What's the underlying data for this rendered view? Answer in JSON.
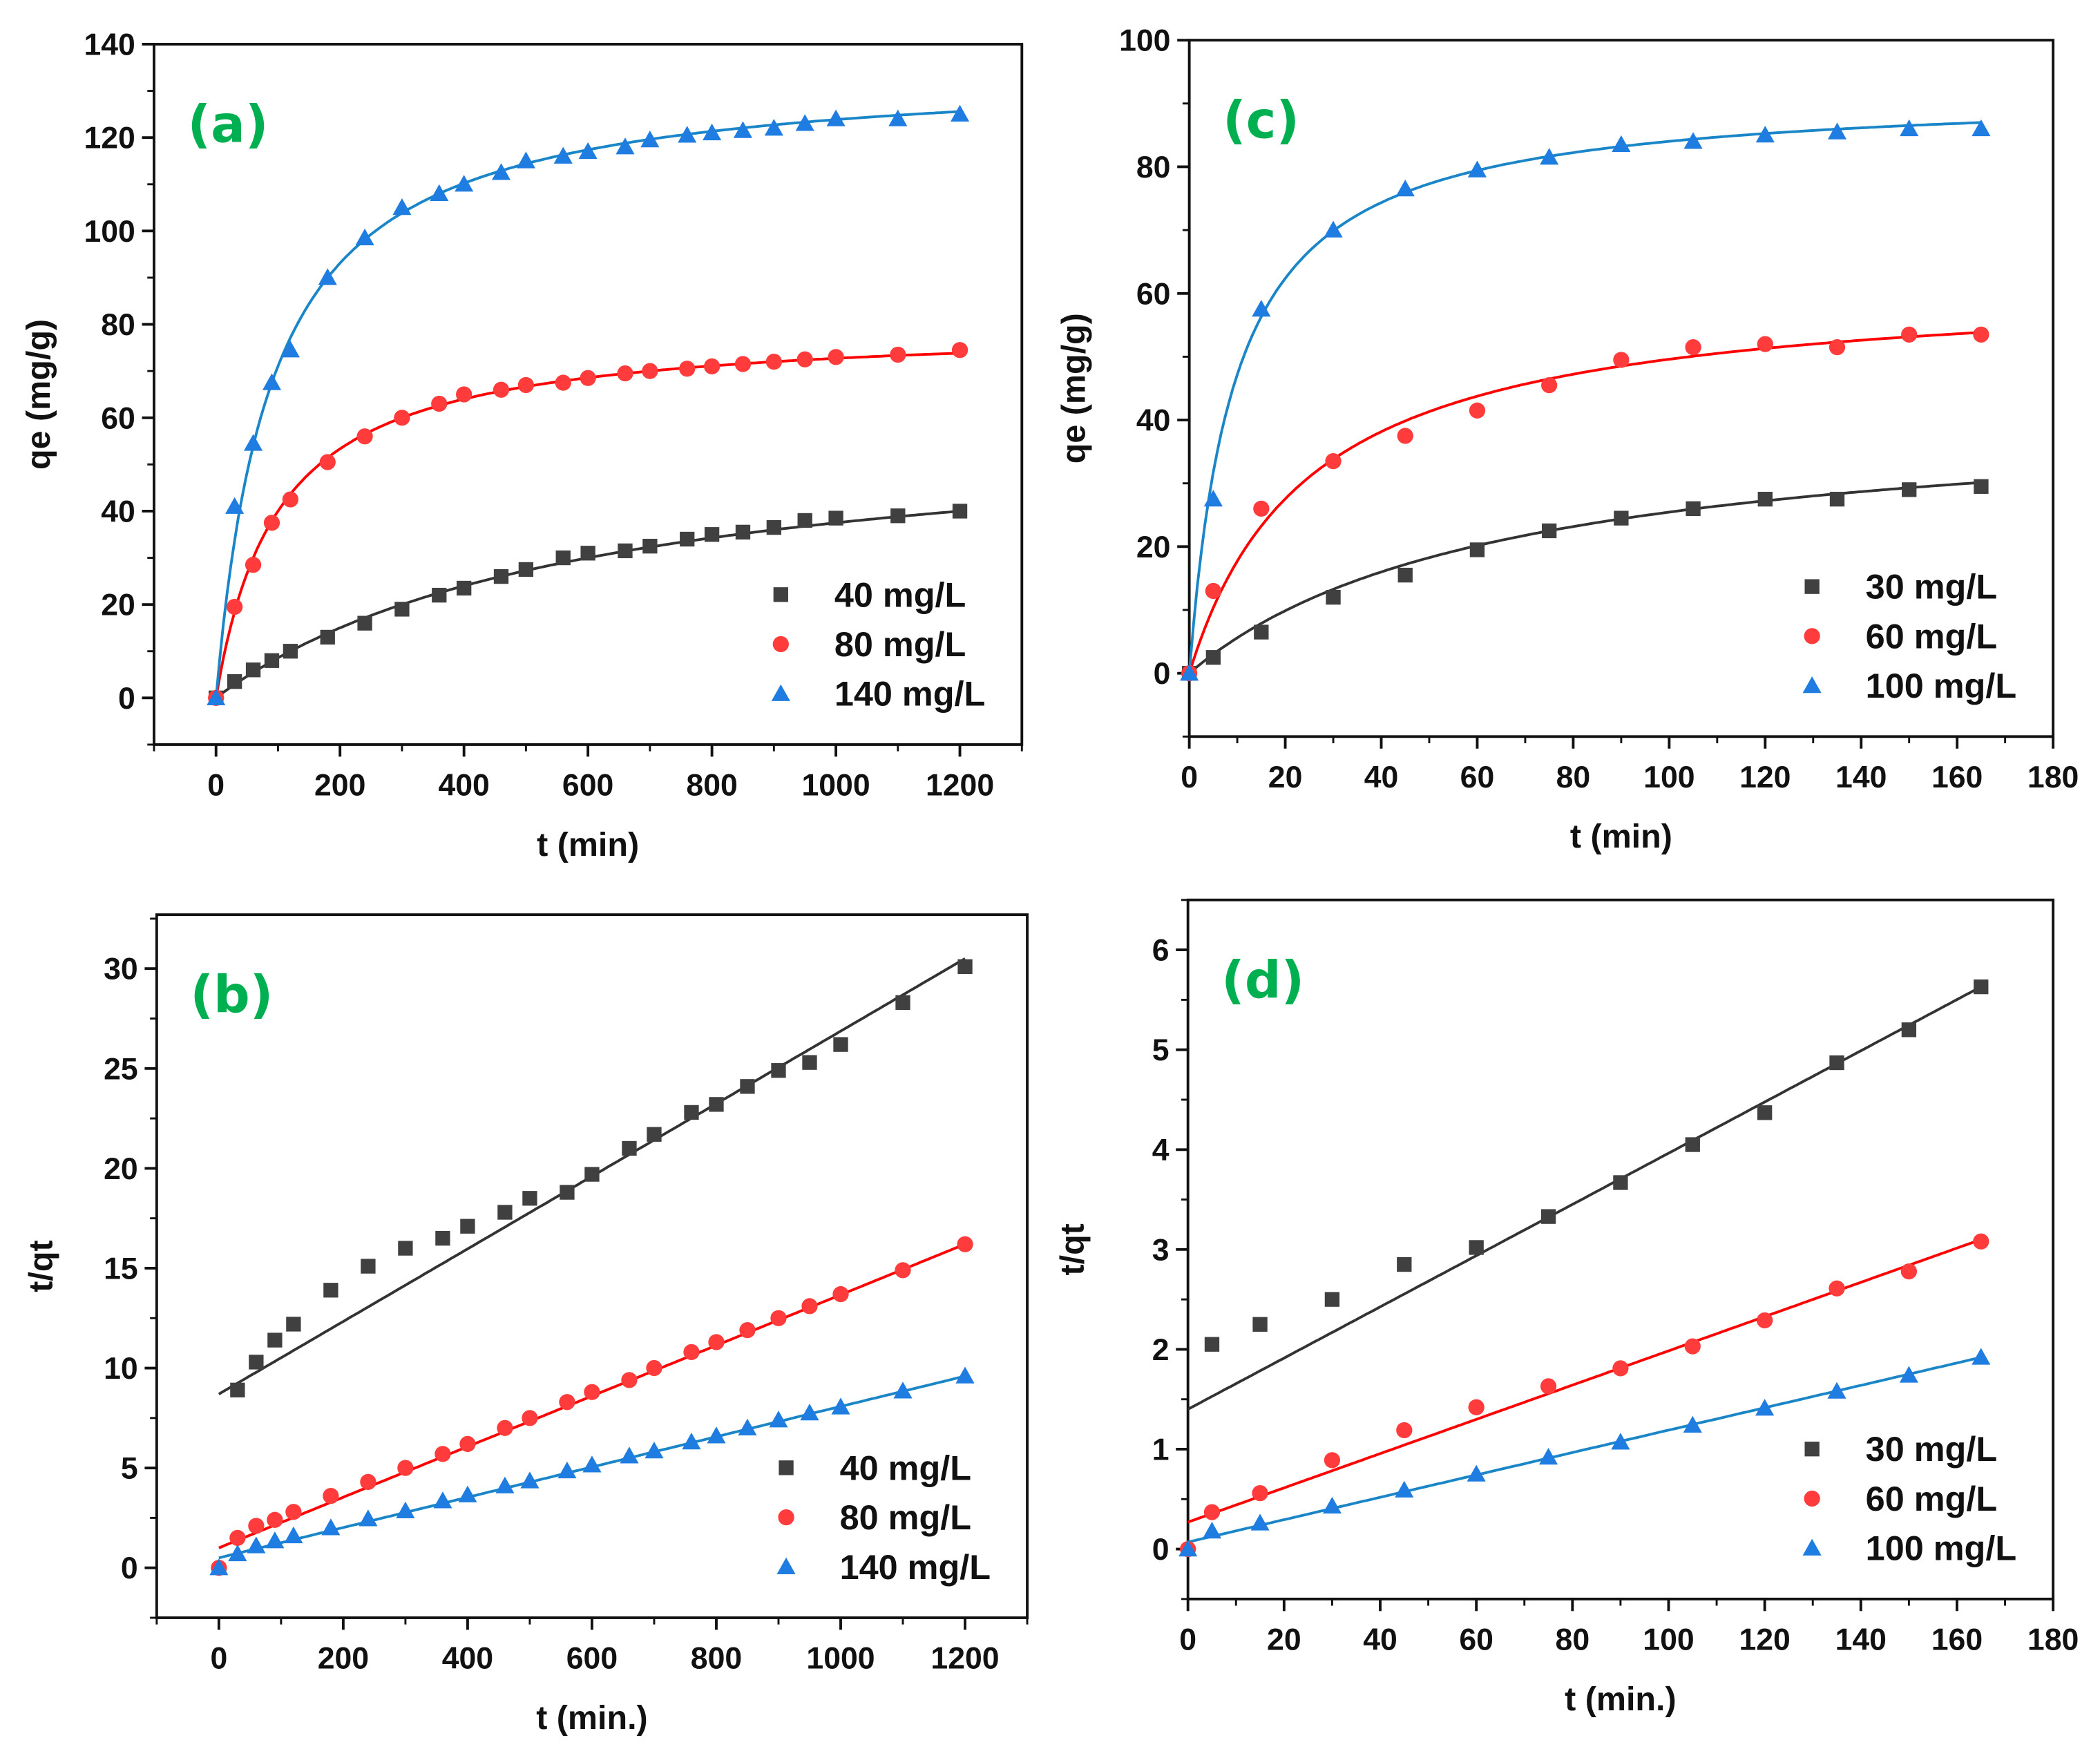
{
  "colors": {
    "panel_label": "#00b050"
  },
  "chart_data": [
    {
      "id": "a",
      "panel_label": "(a)",
      "type": "scatter",
      "xlabel": "t (min)",
      "ylabel": "qe (mg/g)",
      "xlim": [
        -100,
        1300
      ],
      "ylim": [
        -10,
        140
      ],
      "xticks": [
        0,
        200,
        400,
        600,
        800,
        1000,
        1200
      ],
      "yticks": [
        0,
        20,
        40,
        60,
        80,
        100,
        120,
        140
      ],
      "xminor": 100,
      "yminor": 10,
      "legend": "bottom-right",
      "x": [
        0,
        30,
        60,
        90,
        120,
        180,
        240,
        300,
        360,
        400,
        460,
        500,
        560,
        600,
        660,
        700,
        760,
        800,
        850,
        900,
        950,
        1000,
        1100,
        1200
      ],
      "series": [
        {
          "name": "40 mg/L",
          "marker": "square",
          "color": "#404040",
          "line_color": "#333333",
          "values": [
            0,
            3.5,
            6,
            8,
            10,
            13,
            16,
            19,
            22,
            23.5,
            26,
            27.5,
            30,
            31,
            31.5,
            32.5,
            34,
            35,
            35.5,
            36.5,
            38,
            38.5,
            39,
            40
          ],
          "fit": {
            "model": "pseudo-second-order",
            "qe": 60,
            "t_half": 600
          }
        },
        {
          "name": "80 mg/L",
          "marker": "circle",
          "color": "#ff3b3b",
          "line_color": "#ff0000",
          "values": [
            0,
            19.5,
            28.5,
            37.5,
            42.5,
            50.5,
            56,
            60,
            63,
            65,
            66,
            67,
            67.5,
            68.5,
            69.5,
            70,
            70.5,
            71,
            71.5,
            72,
            72.5,
            73,
            73.5,
            74.5
          ],
          "fit": {
            "model": "pseudo-second-order",
            "qe": 80,
            "t_half": 100
          }
        },
        {
          "name": "140 mg/L",
          "marker": "triangle",
          "color": "#1f7ce0",
          "line_color": "#1a86c8",
          "values": [
            0,
            41,
            54.5,
            67.5,
            74.5,
            90,
            98.5,
            105,
            108,
            110,
            112.5,
            115,
            116,
            117,
            118,
            119.5,
            120.5,
            121,
            121.5,
            122,
            123,
            124,
            124,
            125
          ],
          "fit": {
            "model": "pseudo-second-order",
            "qe": 135,
            "t_half": 90
          }
        }
      ]
    },
    {
      "id": "c",
      "panel_label": "(c)",
      "type": "scatter",
      "xlabel": "t (min)",
      "ylabel": "qe (mg/g)",
      "xlim": [
        0,
        180
      ],
      "ylim": [
        -10,
        100
      ],
      "xticks": [
        0,
        20,
        40,
        60,
        80,
        100,
        120,
        140,
        160,
        180
      ],
      "yticks": [
        0,
        20,
        40,
        60,
        80,
        100
      ],
      "xminor": 10,
      "yminor": 10,
      "legend": "bottom-right",
      "x": [
        0,
        5,
        15,
        30,
        45,
        60,
        75,
        90,
        105,
        120,
        135,
        150,
        165
      ],
      "series": [
        {
          "name": "30 mg/L",
          "marker": "square",
          "color": "#404040",
          "line_color": "#333333",
          "values": [
            0,
            2.5,
            6.5,
            12,
            15.5,
            19.5,
            22.5,
            24.5,
            26,
            27.5,
            27.5,
            29,
            29.5
          ],
          "fit": {
            "model": "pseudo-second-order",
            "qe": 42,
            "t_half": 65
          }
        },
        {
          "name": "60 mg/L",
          "marker": "circle",
          "color": "#ff3b3b",
          "line_color": "#ff0000",
          "values": [
            0,
            13,
            26,
            33.5,
            37.5,
            41.5,
            45.5,
            49.5,
            51.5,
            52,
            51.5,
            53.5,
            53.5
          ],
          "fit": {
            "model": "pseudo-second-order",
            "qe": 62,
            "t_half": 25
          }
        },
        {
          "name": "100 mg/L",
          "marker": "triangle",
          "color": "#1f7ce0",
          "line_color": "#1a86c8",
          "values": [
            0,
            27.5,
            57.5,
            70,
            76.5,
            79.5,
            81.5,
            83.5,
            84,
            85,
            85.5,
            86,
            86
          ],
          "fit": {
            "model": "pseudo-second-order",
            "qe": 92,
            "t_half": 9.5
          }
        }
      ]
    },
    {
      "id": "b",
      "panel_label": "(b)",
      "type": "scatter",
      "xlabel": "t (min.)",
      "ylabel": "t/qt",
      "xlim": [
        -100,
        1300
      ],
      "ylim": [
        -2.5,
        32.7
      ],
      "xticks": [
        0,
        200,
        400,
        600,
        800,
        1000,
        1200
      ],
      "yticks": [
        0,
        5,
        10,
        15,
        20,
        25,
        30
      ],
      "xminor": 100,
      "yminor": 2.5,
      "legend": "bottom-right",
      "x": [
        0,
        30,
        60,
        90,
        120,
        180,
        240,
        300,
        360,
        400,
        460,
        500,
        560,
        600,
        660,
        700,
        760,
        800,
        850,
        900,
        950,
        1000,
        1100,
        1200
      ],
      "series": [
        {
          "name": "40 mg/L",
          "marker": "square",
          "color": "#404040",
          "line_color": "#333333",
          "values": [
            null,
            8.9,
            10.3,
            11.4,
            12.2,
            13.9,
            15.1,
            16,
            16.5,
            17.1,
            17.8,
            18.5,
            18.8,
            19.7,
            21,
            21.7,
            22.8,
            23.2,
            24.1,
            24.9,
            25.3,
            26.2,
            28.3,
            30.1
          ],
          "fit": {
            "model": "linear",
            "intercept": 8.7,
            "slope": 0.01817
          }
        },
        {
          "name": "80 mg/L",
          "marker": "circle",
          "color": "#ff3b3b",
          "line_color": "#ff0000",
          "values": [
            0,
            1.5,
            2.1,
            2.4,
            2.8,
            3.6,
            4.3,
            5,
            5.7,
            6.2,
            7,
            7.5,
            8.3,
            8.8,
            9.4,
            10,
            10.8,
            11.3,
            11.9,
            12.5,
            13.1,
            13.7,
            14.9,
            16.2
          ],
          "fit": {
            "model": "linear",
            "intercept": 1.0,
            "slope": 0.01267
          }
        },
        {
          "name": "140 mg/L",
          "marker": "triangle",
          "color": "#1f7ce0",
          "line_color": "#1a86c8",
          "values": [
            0,
            0.7,
            1.1,
            1.35,
            1.6,
            2,
            2.45,
            2.85,
            3.35,
            3.65,
            4.1,
            4.35,
            4.85,
            5.15,
            5.6,
            5.85,
            6.3,
            6.6,
            7,
            7.4,
            7.75,
            8.05,
            8.85,
            9.6
          ],
          "fit": {
            "model": "linear",
            "intercept": 0.5,
            "slope": 0.00758
          }
        }
      ]
    },
    {
      "id": "d",
      "panel_label": "(d)",
      "type": "scatter",
      "xlabel": "t (min.)",
      "ylabel": "t/qt",
      "xlim": [
        0,
        180
      ],
      "ylim": [
        -0.5,
        6.5
      ],
      "xticks": [
        0,
        20,
        40,
        60,
        80,
        100,
        120,
        140,
        160,
        180
      ],
      "yticks": [
        0,
        1,
        2,
        3,
        4,
        5,
        6
      ],
      "xminor": 10,
      "yminor": 0.5,
      "legend": "bottom-right",
      "x": [
        0,
        5,
        15,
        30,
        45,
        60,
        75,
        90,
        105,
        120,
        135,
        150,
        165
      ],
      "series": [
        {
          "name": "30 mg/L",
          "marker": "square",
          "color": "#404040",
          "line_color": "#333333",
          "values": [
            null,
            2.05,
            2.25,
            2.5,
            2.85,
            3.02,
            3.33,
            3.67,
            4.05,
            4.37,
            4.87,
            5.2,
            5.63
          ],
          "fit": {
            "model": "linear",
            "intercept": 1.4,
            "slope": 0.02564
          }
        },
        {
          "name": "60 mg/L",
          "marker": "circle",
          "color": "#ff3b3b",
          "line_color": "#ff0000",
          "values": [
            0,
            0.37,
            0.56,
            0.89,
            1.19,
            1.42,
            1.63,
            1.81,
            2.03,
            2.29,
            2.61,
            2.78,
            3.08
          ],
          "fit": {
            "model": "linear",
            "intercept": 0.27,
            "slope": 0.01715
          }
        },
        {
          "name": "100 mg/L",
          "marker": "triangle",
          "color": "#1f7ce0",
          "line_color": "#1a86c8",
          "values": [
            0,
            0.18,
            0.26,
            0.43,
            0.59,
            0.75,
            0.92,
            1.07,
            1.24,
            1.41,
            1.58,
            1.74,
            1.92
          ],
          "fit": {
            "model": "linear",
            "intercept": 0.07,
            "slope": 0.01121
          }
        }
      ]
    }
  ]
}
